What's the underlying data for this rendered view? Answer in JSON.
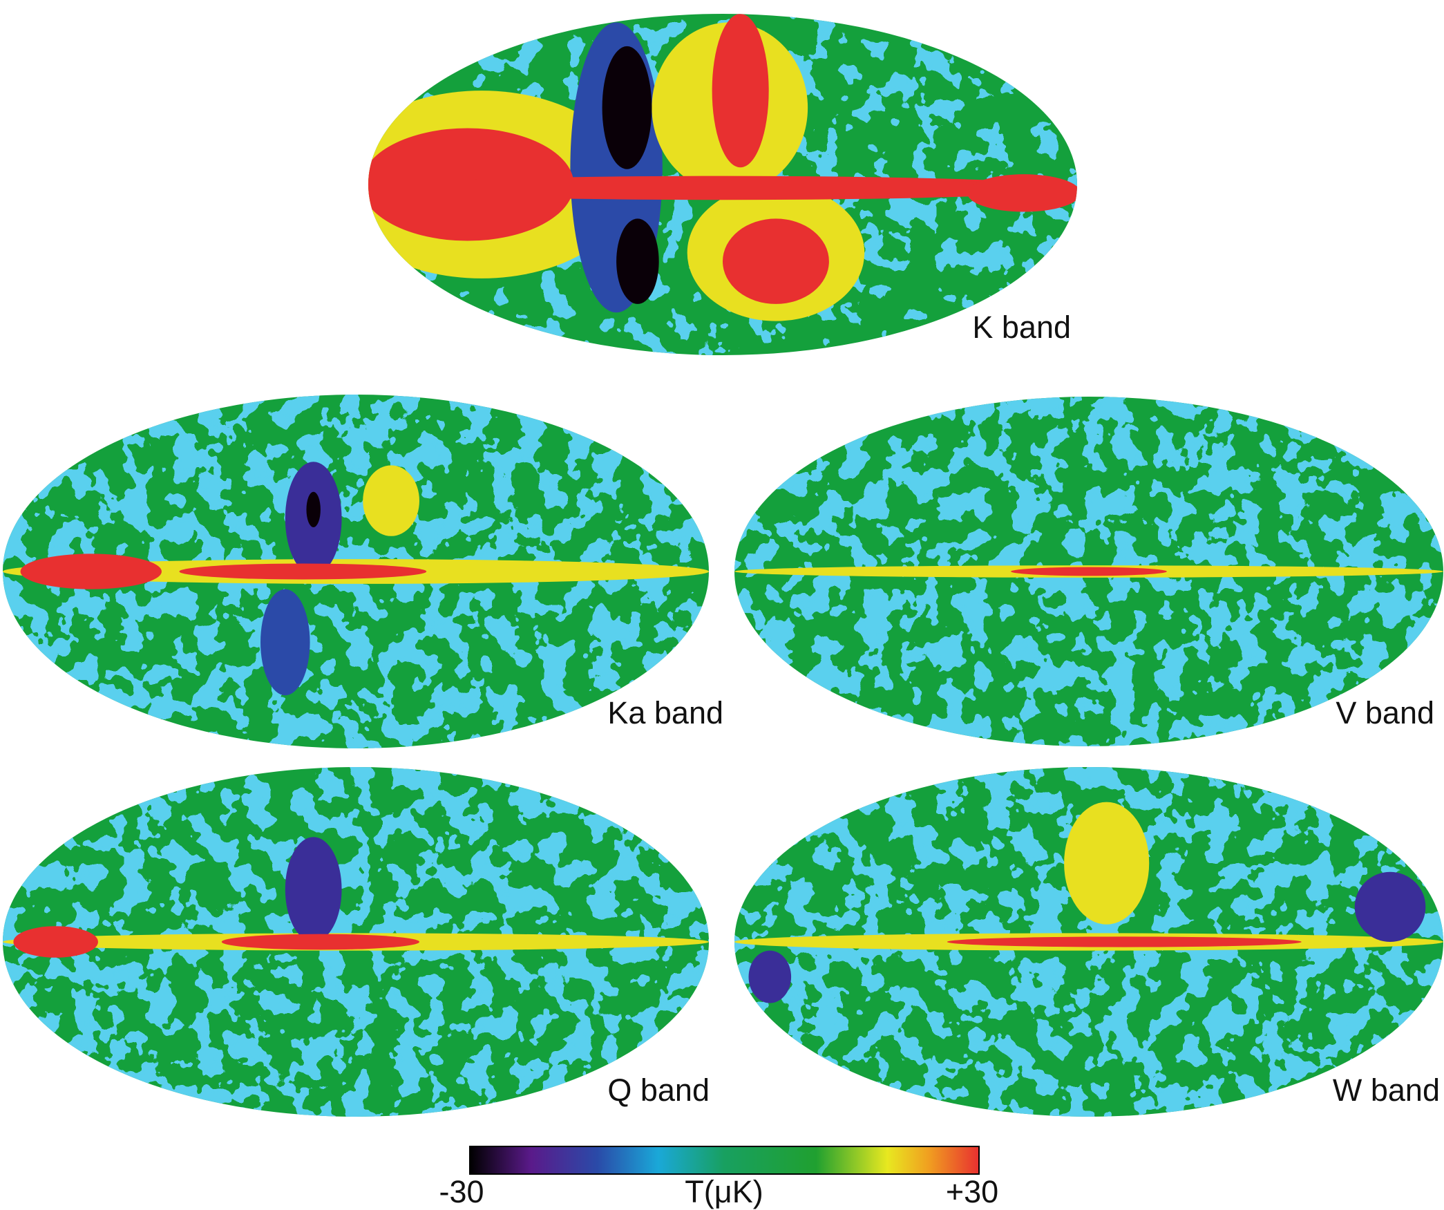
{
  "maps": [
    {
      "label": "K band"
    },
    {
      "label": "Ka band"
    },
    {
      "label": "V band"
    },
    {
      "label": "Q band"
    },
    {
      "label": "W band"
    }
  ],
  "colorbar": {
    "label": "T(μK)",
    "ticks": [
      -30,
      {
        "value": 30,
        "label": "+30"
      }
    ]
  }
}
